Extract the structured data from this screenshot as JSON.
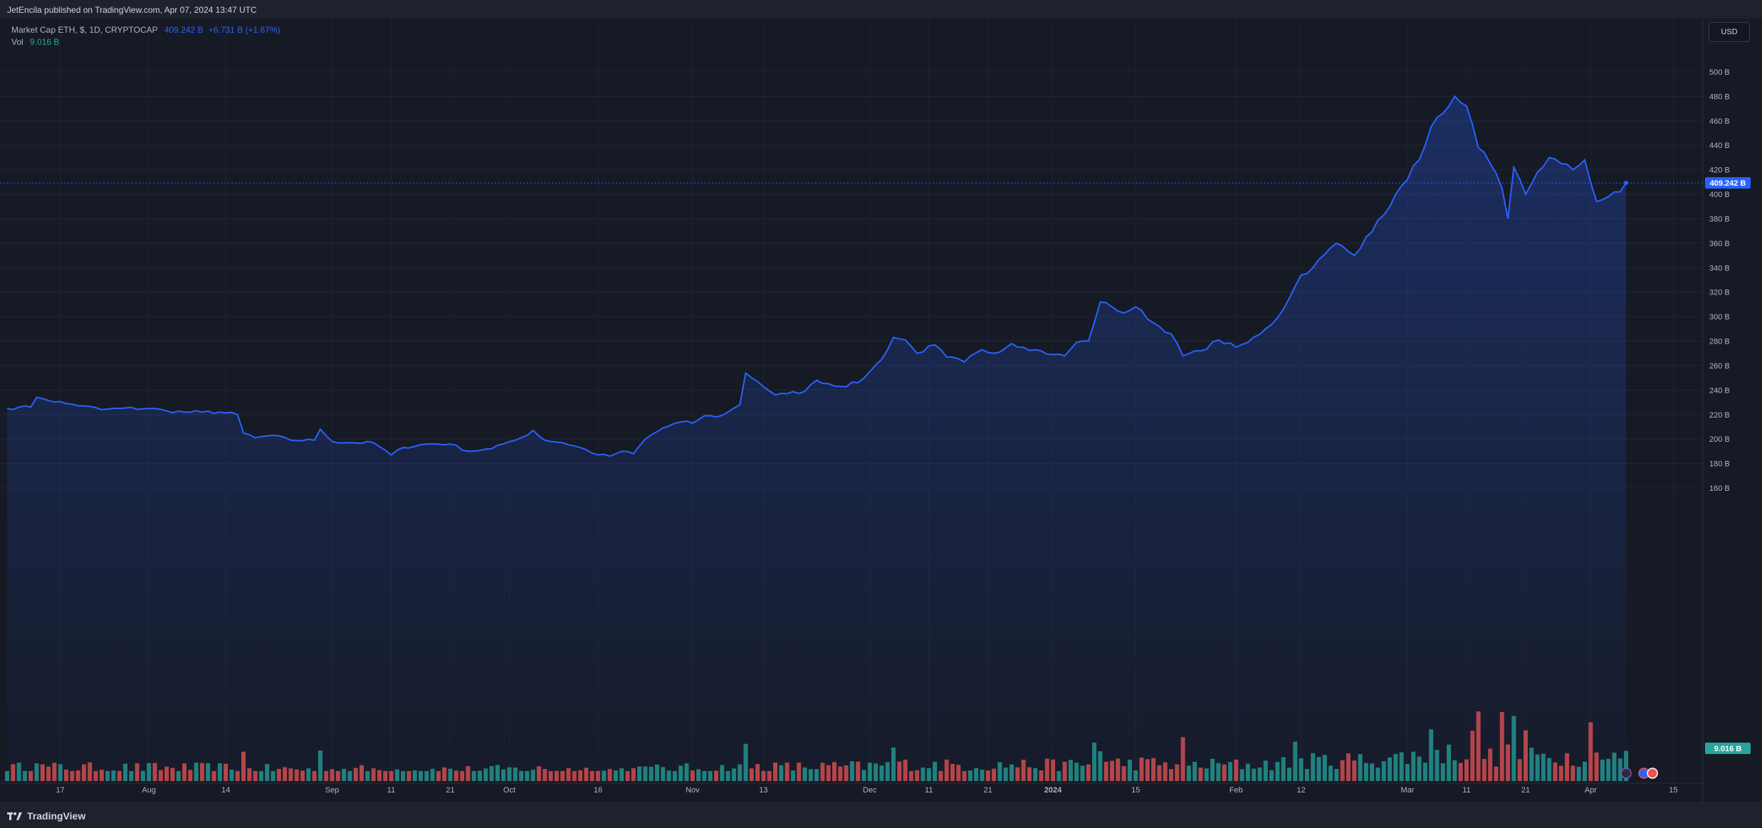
{
  "header": {
    "publish_line": "JetEncila published on TradingView.com, Apr 07, 2024 13:47 UTC"
  },
  "legend": {
    "symbol": "Market Cap ETH, $, 1D, CRYPTOCAP",
    "value": "409.242 B",
    "change": "+6.731 B (+1.67%)",
    "volume_label": "Vol",
    "volume_value": "9.016 B"
  },
  "currency": "USD",
  "footer": {
    "brand": "TradingView"
  },
  "colors": {
    "line": "#2962ff",
    "up_volume": "#26a69a",
    "down_volume": "#ef5350",
    "price_badge": "#2962ff",
    "volume_badge": "#26a69a"
  },
  "chart_data": {
    "type": "area",
    "title": "Market Cap ETH, $, 1D, CRYPTOCAP",
    "units": "billion USD",
    "ylim": [
      155,
      515
    ],
    "y_ticks": [
      "160 B",
      "180 B",
      "200 B",
      "220 B",
      "240 B",
      "260 B",
      "280 B",
      "300 B",
      "320 B",
      "340 B",
      "360 B",
      "380 B",
      "400 B",
      "420 B",
      "440 B",
      "460 B",
      "480 B",
      "500 B"
    ],
    "y_tick_values": [
      160,
      180,
      200,
      220,
      240,
      260,
      280,
      300,
      320,
      340,
      360,
      380,
      400,
      420,
      440,
      460,
      480,
      500
    ],
    "x_ticks": [
      {
        "label": "17",
        "date": "2023-07-17"
      },
      {
        "label": "Aug",
        "date": "2023-08-01"
      },
      {
        "label": "14",
        "date": "2023-08-14"
      },
      {
        "label": "Sep",
        "date": "2023-09-01"
      },
      {
        "label": "11",
        "date": "2023-09-11"
      },
      {
        "label": "21",
        "date": "2023-09-21"
      },
      {
        "label": "Oct",
        "date": "2023-10-01"
      },
      {
        "label": "16",
        "date": "2023-10-16"
      },
      {
        "label": "Nov",
        "date": "2023-11-01"
      },
      {
        "label": "13",
        "date": "2023-11-13"
      },
      {
        "label": "Dec",
        "date": "2023-12-01"
      },
      {
        "label": "11",
        "date": "2023-12-11"
      },
      {
        "label": "21",
        "date": "2023-12-21"
      },
      {
        "label": "2024",
        "date": "2024-01-01"
      },
      {
        "label": "15",
        "date": "2024-01-15"
      },
      {
        "label": "Feb",
        "date": "2024-02-01"
      },
      {
        "label": "12",
        "date": "2024-02-12"
      },
      {
        "label": "Mar",
        "date": "2024-03-01"
      },
      {
        "label": "11",
        "date": "2024-03-11"
      },
      {
        "label": "21",
        "date": "2024-03-21"
      },
      {
        "label": "Apr",
        "date": "2024-04-01"
      },
      {
        "label": "15",
        "date": "2024-04-15"
      }
    ],
    "x_range": [
      "2023-07-08",
      "2024-04-20"
    ],
    "last_value_label": "409.242 B",
    "last_volume_label": "9.016 B",
    "series_keyframes": [
      [
        "2023-07-08",
        225
      ],
      [
        "2023-07-10",
        226
      ],
      [
        "2023-07-12",
        226
      ],
      [
        "2023-07-13",
        234
      ],
      [
        "2023-07-14",
        233
      ],
      [
        "2023-07-18",
        229
      ],
      [
        "2023-07-21",
        227
      ],
      [
        "2023-07-24",
        224
      ],
      [
        "2023-07-27",
        225
      ],
      [
        "2023-08-01",
        225
      ],
      [
        "2023-08-04",
        223
      ],
      [
        "2023-08-07",
        222
      ],
      [
        "2023-08-10",
        222
      ],
      [
        "2023-08-13",
        222
      ],
      [
        "2023-08-16",
        220
      ],
      [
        "2023-08-17",
        205
      ],
      [
        "2023-08-19",
        201
      ],
      [
        "2023-08-22",
        203
      ],
      [
        "2023-08-25",
        199
      ],
      [
        "2023-08-29",
        199
      ],
      [
        "2023-08-30",
        208
      ],
      [
        "2023-09-01",
        198
      ],
      [
        "2023-09-04",
        197
      ],
      [
        "2023-09-08",
        197
      ],
      [
        "2023-09-11",
        187
      ],
      [
        "2023-09-13",
        193
      ],
      [
        "2023-09-17",
        196
      ],
      [
        "2023-09-21",
        196
      ],
      [
        "2023-09-24",
        190
      ],
      [
        "2023-09-28",
        192
      ],
      [
        "2023-10-01",
        198
      ],
      [
        "2023-10-04",
        203
      ],
      [
        "2023-10-05",
        207
      ],
      [
        "2023-10-07",
        199
      ],
      [
        "2023-10-10",
        197
      ],
      [
        "2023-10-13",
        193
      ],
      [
        "2023-10-16",
        187
      ],
      [
        "2023-10-18",
        186
      ],
      [
        "2023-10-20",
        190
      ],
      [
        "2023-10-22",
        188
      ],
      [
        "2023-10-24",
        200
      ],
      [
        "2023-10-27",
        209
      ],
      [
        "2023-10-30",
        214
      ],
      [
        "2023-11-01",
        213
      ],
      [
        "2023-11-03",
        219
      ],
      [
        "2023-11-05",
        218
      ],
      [
        "2023-11-07",
        222
      ],
      [
        "2023-11-09",
        228
      ],
      [
        "2023-11-10",
        254
      ],
      [
        "2023-11-12",
        247
      ],
      [
        "2023-11-15",
        236
      ],
      [
        "2023-11-17",
        237
      ],
      [
        "2023-11-20",
        239
      ],
      [
        "2023-11-22",
        248
      ],
      [
        "2023-11-26",
        243
      ],
      [
        "2023-11-29",
        246
      ],
      [
        "2023-12-01",
        255
      ],
      [
        "2023-12-03",
        265
      ],
      [
        "2023-12-05",
        283
      ],
      [
        "2023-12-07",
        281
      ],
      [
        "2023-12-09",
        270
      ],
      [
        "2023-12-12",
        277
      ],
      [
        "2023-12-14",
        267
      ],
      [
        "2023-12-17",
        263
      ],
      [
        "2023-12-20",
        273
      ],
      [
        "2023-12-22",
        270
      ],
      [
        "2023-12-25",
        278
      ],
      [
        "2023-12-27",
        275
      ],
      [
        "2023-12-29",
        273
      ],
      [
        "2024-01-01",
        269
      ],
      [
        "2024-01-03",
        268
      ],
      [
        "2024-01-05",
        279
      ],
      [
        "2024-01-07",
        280
      ],
      [
        "2024-01-09",
        312
      ],
      [
        "2024-01-11",
        308
      ],
      [
        "2024-01-13",
        303
      ],
      [
        "2024-01-15",
        308
      ],
      [
        "2024-01-18",
        295
      ],
      [
        "2024-01-21",
        286
      ],
      [
        "2024-01-23",
        268
      ],
      [
        "2024-01-26",
        272
      ],
      [
        "2024-01-29",
        281
      ],
      [
        "2024-02-01",
        275
      ],
      [
        "2024-02-03",
        279
      ],
      [
        "2024-02-06",
        290
      ],
      [
        "2024-02-08",
        299
      ],
      [
        "2024-02-10",
        315
      ],
      [
        "2024-02-12",
        334
      ],
      [
        "2024-02-14",
        340
      ],
      [
        "2024-02-16",
        351
      ],
      [
        "2024-02-18",
        360
      ],
      [
        "2024-02-21",
        350
      ],
      [
        "2024-02-23",
        365
      ],
      [
        "2024-02-26",
        383
      ],
      [
        "2024-02-28",
        400
      ],
      [
        "2024-03-01",
        412
      ],
      [
        "2024-03-04",
        440
      ],
      [
        "2024-03-05",
        455
      ],
      [
        "2024-03-07",
        466
      ],
      [
        "2024-03-08",
        472
      ],
      [
        "2024-03-09",
        480
      ],
      [
        "2024-03-10",
        475
      ],
      [
        "2024-03-11",
        472
      ],
      [
        "2024-03-13",
        438
      ],
      [
        "2024-03-15",
        425
      ],
      [
        "2024-03-17",
        405
      ],
      [
        "2024-03-18",
        380
      ],
      [
        "2024-03-19",
        422
      ],
      [
        "2024-03-21",
        400
      ],
      [
        "2024-03-23",
        418
      ],
      [
        "2024-03-25",
        430
      ],
      [
        "2024-03-27",
        425
      ],
      [
        "2024-03-29",
        420
      ],
      [
        "2024-03-31",
        428
      ],
      [
        "2024-04-02",
        394
      ],
      [
        "2024-04-04",
        398
      ],
      [
        "2024-04-06",
        402
      ],
      [
        "2024-04-07",
        409.242
      ]
    ],
    "volume_note": "Volume histogram on the bottom pane; values in billion USD, green = up day, red = down day; last volume 9.016 B"
  }
}
